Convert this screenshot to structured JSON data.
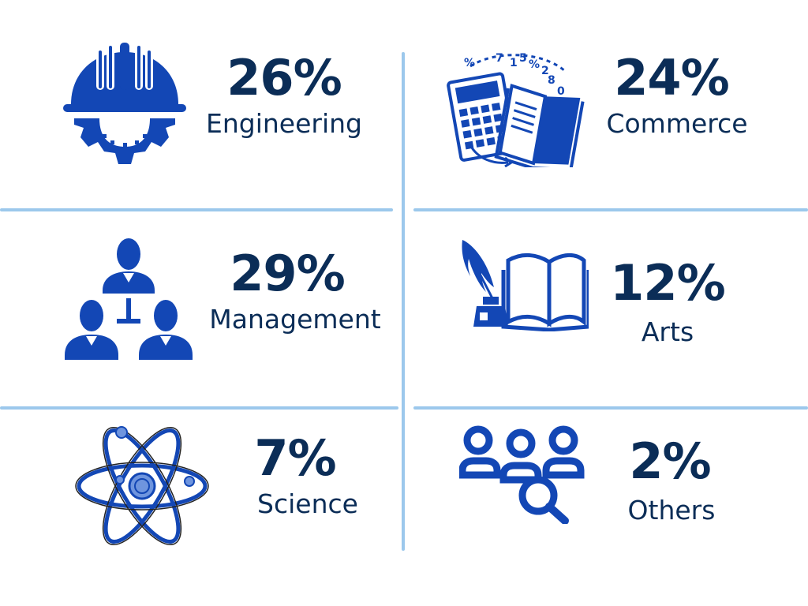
{
  "colors": {
    "icon_blue": "#1347b5",
    "text_navy": "#0b2d57",
    "divider": "#9cc8ec",
    "background": "#ffffff"
  },
  "stats": [
    {
      "percent": "26%",
      "label": "Engineering",
      "icon": "hardhat-gear-icon"
    },
    {
      "percent": "24%",
      "label": "Commerce",
      "icon": "calculator-book-icon"
    },
    {
      "percent": "29%",
      "label": "Management",
      "icon": "team-hierarchy-icon"
    },
    {
      "percent": "12%",
      "label": "Arts",
      "icon": "quill-book-icon"
    },
    {
      "percent": "7%",
      "label": "Science",
      "icon": "atom-icon"
    },
    {
      "percent": "2%",
      "label": "Others",
      "icon": "people-search-icon"
    }
  ]
}
